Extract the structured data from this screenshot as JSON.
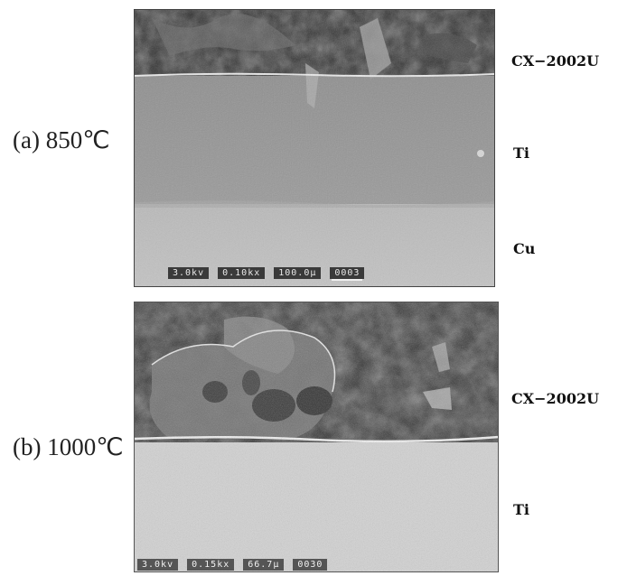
{
  "panel_a": {
    "caption": "(a) 850℃",
    "layers": [
      "CX−2002U",
      "Ti",
      "Cu"
    ],
    "databar": [
      "3.0kv",
      "0.10kx",
      "100.0µ",
      "0003"
    ]
  },
  "panel_b": {
    "caption": "(b) 1000℃",
    "layers": [
      "CX−2002U",
      "Ti"
    ],
    "databar": [
      "3.0kv",
      "0.15kx",
      "66.7µ",
      "0030"
    ]
  }
}
